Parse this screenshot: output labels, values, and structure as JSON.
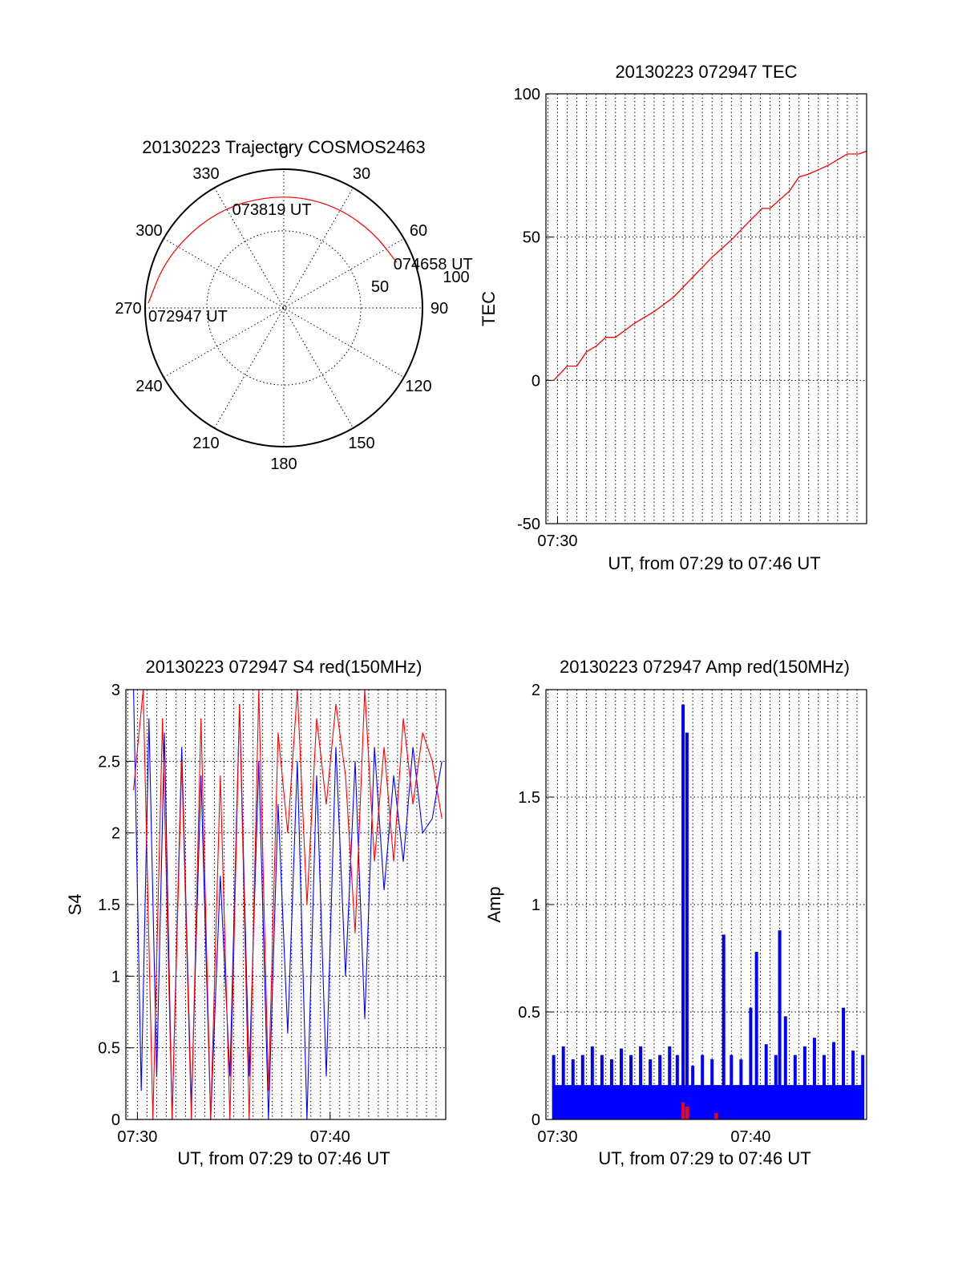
{
  "colors": {
    "red": "#ff0000",
    "blue": "#0000ff",
    "axis": "#000000"
  },
  "chart_data": [
    {
      "type": "polar",
      "title": "20130223 Trajectory COSMOS2463",
      "angle_labels": [
        "0",
        "30",
        "60",
        "90",
        "120",
        "150",
        "180",
        "210",
        "240",
        "270",
        "300",
        "330"
      ],
      "radial_labels": [
        "50",
        "100"
      ],
      "rmax": 90,
      "trajectory": {
        "az": [
          272,
          290,
          310,
          330,
          350,
          10,
          30,
          50,
          68
        ],
        "el_radius": [
          88,
          83,
          78,
          75,
          73,
          73,
          74,
          76,
          79
        ]
      },
      "annotations": [
        {
          "text": "072947 UT",
          "az": 272,
          "r": 88
        },
        {
          "text": "073819 UT",
          "az": 350,
          "r": 73
        },
        {
          "text": "074658 UT",
          "az": 68,
          "r": 79
        }
      ]
    },
    {
      "type": "line",
      "title": "20130223 072947 TEC",
      "xlabel": "UT, from 07:29 to 07:46 UT",
      "ylabel": "TEC",
      "xlim": [
        449.4,
        466.0
      ],
      "ylim": [
        -50,
        100
      ],
      "yticks": [
        -50,
        0,
        50,
        100
      ],
      "xtick_labels": [
        {
          "x": 450.0,
          "label": "07:30"
        }
      ],
      "series": [
        {
          "color": "#ff0000",
          "x": [
            449.8,
            450.5,
            451.0,
            451.5,
            452.0,
            452.5,
            453.0,
            454.0,
            455.0,
            456.0,
            457.0,
            458.0,
            459.0,
            460.0,
            460.6,
            461.0,
            462.0,
            462.5,
            463.0,
            464.0,
            465.0,
            465.6,
            466.0
          ],
          "y": [
            0,
            5,
            5,
            10,
            12,
            15,
            15,
            20,
            24,
            29,
            36,
            43,
            49,
            56,
            60,
            60,
            66,
            71,
            72,
            75,
            79,
            79,
            80
          ]
        }
      ]
    },
    {
      "type": "line",
      "title": "20130223 072947 S4 red(150MHz)",
      "xlabel": "UT, from 07:29 to 07:46 UT",
      "ylabel": "S4",
      "xlim": [
        449.4,
        466.0
      ],
      "ylim": [
        0,
        3
      ],
      "yticks": [
        "0",
        "0.5",
        "1",
        "1.5",
        "2",
        "2.5",
        "3"
      ],
      "xtick_labels": [
        {
          "x": 450.0,
          "label": "07:30"
        },
        {
          "x": 460.0,
          "label": "07:40"
        }
      ],
      "series": [
        {
          "color": "#0000ff",
          "x": [
            449.8,
            450.2,
            450.6,
            451.0,
            451.4,
            451.8,
            452.3,
            452.8,
            453.3,
            453.8,
            454.3,
            454.8,
            455.3,
            455.8,
            456.3,
            456.8,
            457.3,
            457.8,
            458.3,
            458.8,
            459.3,
            459.8,
            460.3,
            460.8,
            461.3,
            461.8,
            462.3,
            462.8,
            463.3,
            463.8,
            464.3,
            464.8,
            465.3,
            465.8
          ],
          "y": [
            3.0,
            0.2,
            2.8,
            0.3,
            2.7,
            0.0,
            2.6,
            0.1,
            2.4,
            0.0,
            1.7,
            0.3,
            2.9,
            0.3,
            2.5,
            0.0,
            2.2,
            0.6,
            2.5,
            0.0,
            2.4,
            0.3,
            2.6,
            1.0,
            2.5,
            0.7,
            2.6,
            1.6,
            2.4,
            1.8,
            2.6,
            2.0,
            2.1,
            2.5
          ]
        },
        {
          "color": "#ff0000",
          "x": [
            449.8,
            450.3,
            450.8,
            451.3,
            451.8,
            452.3,
            452.8,
            453.3,
            453.8,
            454.3,
            454.8,
            455.3,
            455.8,
            456.3,
            456.8,
            457.3,
            457.8,
            458.3,
            458.8,
            459.3,
            459.8,
            460.3,
            460.8,
            461.3,
            461.8,
            462.3,
            462.8,
            463.3,
            463.8,
            464.3,
            464.8,
            465.3,
            465.8
          ],
          "y": [
            2.3,
            3.0,
            0.0,
            2.8,
            0.0,
            2.5,
            0.0,
            2.8,
            0.0,
            2.4,
            0.0,
            2.9,
            0.0,
            3.0,
            0.2,
            2.7,
            2.0,
            3.0,
            1.5,
            2.8,
            2.2,
            2.9,
            2.4,
            1.3,
            3.0,
            1.8,
            2.6,
            1.8,
            2.8,
            2.2,
            2.7,
            2.5,
            2.1
          ]
        }
      ]
    },
    {
      "type": "bar",
      "title": "20130223 072947 Amp red(150MHz)",
      "xlabel": "UT, from 07:29 to 07:46 UT",
      "ylabel": "Amp",
      "xlim": [
        449.4,
        466.0
      ],
      "ylim": [
        0,
        2
      ],
      "yticks": [
        "0",
        "0.5",
        "1",
        "1.5",
        "2"
      ],
      "xtick_labels": [
        {
          "x": 450.0,
          "label": "07:30"
        },
        {
          "x": 460.0,
          "label": "07:40"
        }
      ],
      "series": [
        {
          "color": "#0000ff",
          "x": [
            449.8,
            450.3,
            450.8,
            451.3,
            451.8,
            452.3,
            452.8,
            453.3,
            453.8,
            454.3,
            454.8,
            455.3,
            455.8,
            456.2,
            456.5,
            456.7,
            457.0,
            457.5,
            458.0,
            458.6,
            459.0,
            459.5,
            460.0,
            460.3,
            460.8,
            461.3,
            461.5,
            461.8,
            462.3,
            462.8,
            463.3,
            463.8,
            464.3,
            464.8,
            465.3,
            465.8
          ],
          "y": [
            0.3,
            0.34,
            0.28,
            0.3,
            0.34,
            0.3,
            0.28,
            0.33,
            0.3,
            0.34,
            0.28,
            0.3,
            0.34,
            0.3,
            1.93,
            1.8,
            0.25,
            0.3,
            0.28,
            0.86,
            0.3,
            0.28,
            0.52,
            0.78,
            0.35,
            0.3,
            0.88,
            0.48,
            0.3,
            0.34,
            0.38,
            0.3,
            0.36,
            0.52,
            0.32,
            0.3
          ]
        },
        {
          "color": "#ff0000",
          "x": [
            456.5,
            456.7,
            458.2
          ],
          "y": [
            0.08,
            0.06,
            0.03
          ]
        }
      ]
    }
  ]
}
